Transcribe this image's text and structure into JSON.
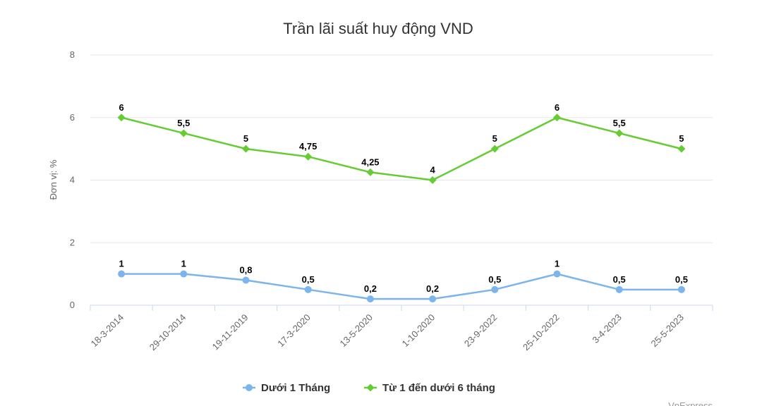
{
  "chart_data": {
    "type": "line",
    "title": "Trần lãi suất huy động VND",
    "ylabel": "Đơn vị: %",
    "xlabel": "",
    "ylim": [
      0,
      8
    ],
    "yticks": [
      "0",
      "2",
      "4",
      "6",
      "8"
    ],
    "categories": [
      "18-3-2014",
      "29-10-2014",
      "19-11-2019",
      "17-3-2020",
      "13-5-2020",
      "1-10-2020",
      "23-9-2022",
      "25-10-2022",
      "3-4-2023",
      "25-5-2023"
    ],
    "series": [
      {
        "name": "Dưới 1 Tháng",
        "color": "#7cb5ec",
        "marker": "circle",
        "values": [
          1,
          1,
          0.8,
          0.5,
          0.2,
          0.2,
          0.5,
          1,
          0.5,
          0.5
        ],
        "labels": [
          "1",
          "1",
          "0,8",
          "0,5",
          "0,2",
          "0,2",
          "0,5",
          "1",
          "0,5",
          "0,5"
        ]
      },
      {
        "name": "Từ 1 đến dưới 6 tháng",
        "color": "#66cc33",
        "marker": "diamond",
        "values": [
          6,
          5.5,
          5,
          4.75,
          4.25,
          4,
          5,
          6,
          5.5,
          5
        ],
        "labels": [
          "6",
          "5,5",
          "5",
          "4,75",
          "4,25",
          "4",
          "5",
          "6",
          "5,5",
          "5"
        ]
      }
    ],
    "grid": true,
    "legend": "bottom-center",
    "credit": "VnExpress"
  }
}
